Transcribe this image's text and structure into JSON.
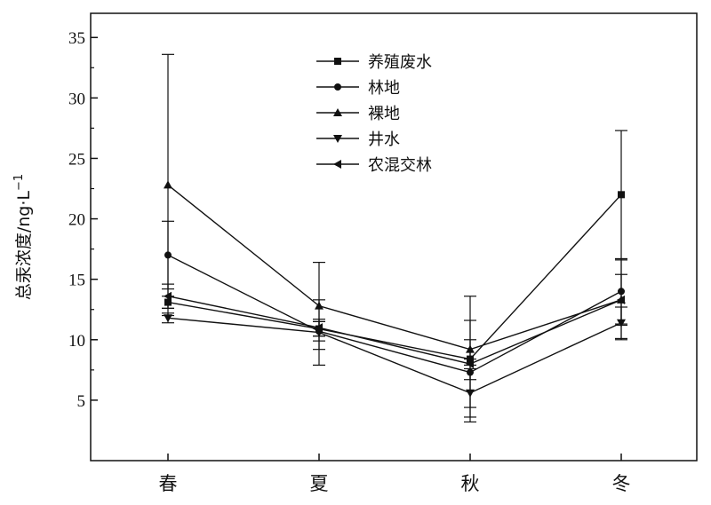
{
  "chart_data": {
    "type": "line",
    "categories": [
      "春",
      "夏",
      "秋",
      "冬"
    ],
    "ylabel": "总汞浓度/ng·L",
    "ylabel_sup": "−1",
    "ylim": [
      0,
      37
    ],
    "yticks": [
      5,
      10,
      15,
      20,
      25,
      30,
      35
    ],
    "grid": false,
    "legend_position": "top-center",
    "series": [
      {
        "name": "养殖废水",
        "marker": "square",
        "values": [
          13.1,
          10.9,
          8.4,
          22.0
        ],
        "err": [
          0.5,
          0.6,
          5.2,
          5.3
        ]
      },
      {
        "name": "林地",
        "marker": "circle",
        "values": [
          17.0,
          10.7,
          7.3,
          14.0
        ],
        "err": [
          2.8,
          0.8,
          0.6,
          2.7
        ]
      },
      {
        "name": "裸地",
        "marker": "triangle-up",
        "values": [
          22.8,
          12.8,
          9.2,
          13.3
        ],
        "err": [
          10.8,
          3.6,
          0.8,
          3.3
        ]
      },
      {
        "name": "井水",
        "marker": "triangle-down",
        "values": [
          11.8,
          10.6,
          5.6,
          11.4
        ],
        "err": [
          0.4,
          2.7,
          2.0,
          1.3
        ]
      },
      {
        "name": "农混交林",
        "marker": "triangle-left",
        "values": [
          13.6,
          11.0,
          8.0,
          13.3
        ],
        "err": [
          1.0,
          0.7,
          3.6,
          2.1
        ]
      }
    ]
  }
}
